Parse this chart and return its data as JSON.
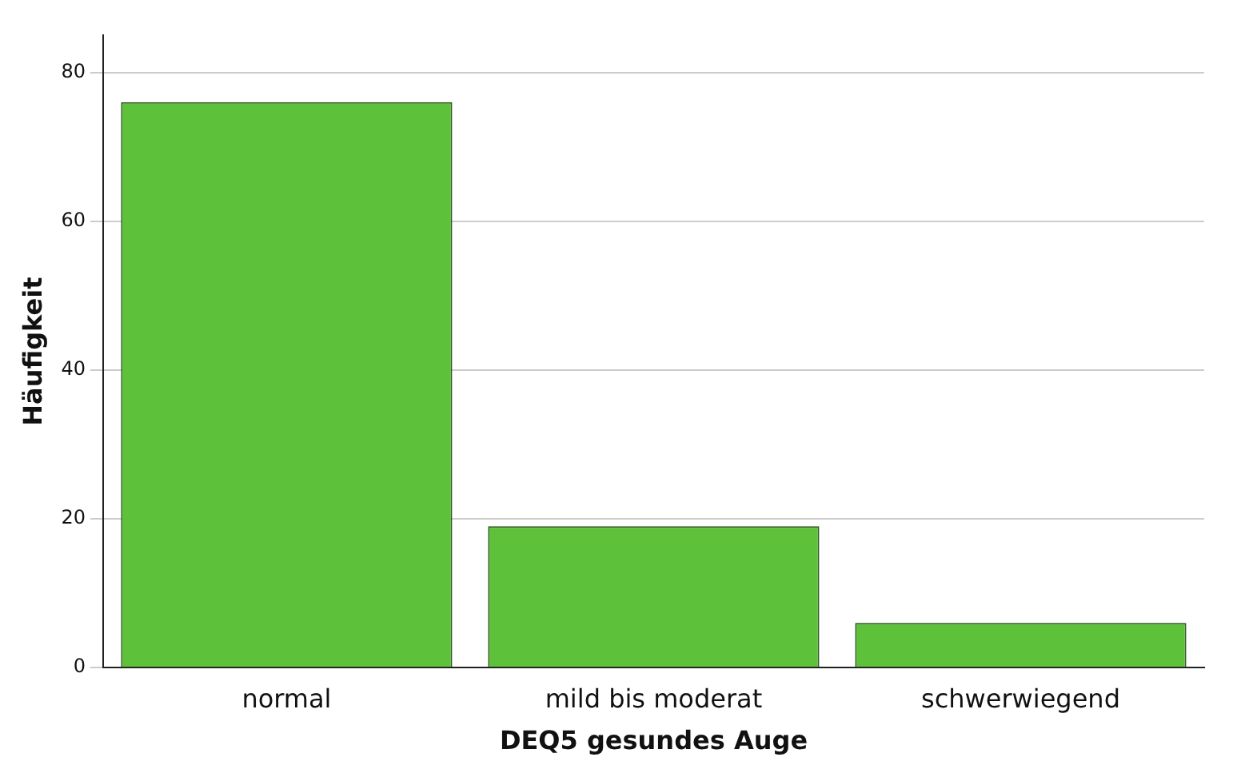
{
  "chart_data": {
    "type": "bar",
    "xlabel": "DEQ5 gesundes Auge",
    "ylabel": "Häufigkeit",
    "categories": [
      "normal",
      "mild bis moderat",
      "schwerwiegend"
    ],
    "values": [
      76,
      19,
      6
    ],
    "color": "#5dc13a",
    "ylim": [
      0,
      85
    ],
    "yticks": [
      0,
      20,
      40,
      60,
      80
    ],
    "grid": "y"
  }
}
